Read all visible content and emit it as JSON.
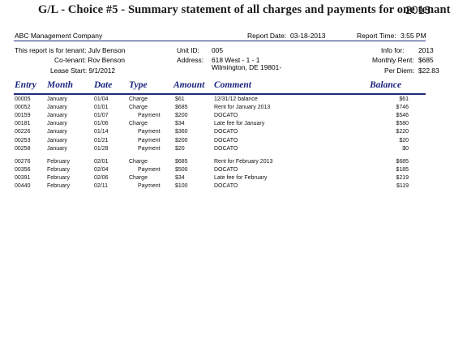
{
  "report": {
    "title": "G/L - Choice #5 - Summary statement of all charges and payments for one tenant",
    "year": "2013",
    "company": "ABC Management Company",
    "report_date_label": "Report Date:",
    "report_date": "03-18-2013",
    "report_time_label": "Report Time:",
    "report_time": "3:55 PM"
  },
  "tenant": {
    "line": "This report is for tenant: Julv Benson",
    "cotenant": "Co-tenant: Rov Benson",
    "lease_start": "Lease Start: 9/1/2012",
    "unit_label": "Unit ID:",
    "unit": "005",
    "address_label": "Address:",
    "address1": "618 West - 1 - 1",
    "address2": "Wilmington, DE 19801-",
    "info_label": "Info for:",
    "info_year": "2013",
    "rent_label": "Monthly Rent:",
    "rent": "$685",
    "per_diem_label": "Per Diem:",
    "per_diem": "$22.83"
  },
  "columns": {
    "entry": "Entry",
    "month": "Month",
    "date": "Date",
    "type": "Type",
    "amount": "Amount",
    "comment": "Comment",
    "balance": "Balance"
  },
  "groups": [
    [
      {
        "entry": "00005",
        "month": "January",
        "date": "01/04",
        "type": "Charge",
        "amount": "$61",
        "comment": "12/31/12 balance",
        "balance": "$61"
      },
      {
        "entry": "00052",
        "month": "January",
        "date": "01/01",
        "type": "Charge",
        "amount": "$685",
        "comment": "Rent for January 2013",
        "balance": "$746"
      },
      {
        "entry": "00159",
        "month": "January",
        "date": "01/07",
        "type": "Payment",
        "amount": "$200",
        "comment": "DOCATO",
        "balance": "$546"
      },
      {
        "entry": "00181",
        "month": "January",
        "date": "01/06",
        "type": "Charge",
        "amount": "$34",
        "comment": "Late fee for January",
        "balance": "$580"
      },
      {
        "entry": "00226",
        "month": "January",
        "date": "01/14",
        "type": "Payment",
        "amount": "$360",
        "comment": "DOCATO",
        "balance": "$220"
      },
      {
        "entry": "00253",
        "month": "January",
        "date": "01/21",
        "type": "Payment",
        "amount": "$200",
        "comment": "DOCATO",
        "balance": "$20"
      },
      {
        "entry": "00258",
        "month": "January",
        "date": "01/28",
        "type": "Payment",
        "amount": "$20",
        "comment": "DOCATO",
        "balance": "$0"
      }
    ],
    [
      {
        "entry": "00276",
        "month": "February",
        "date": "02/01",
        "type": "Charge",
        "amount": "$685",
        "comment": "Rent for February 2013",
        "balance": "$685"
      },
      {
        "entry": "00356",
        "month": "February",
        "date": "02/04",
        "type": "Payment",
        "amount": "$500",
        "comment": "DOCATO",
        "balance": "$185"
      },
      {
        "entry": "00391",
        "month": "February",
        "date": "02/06",
        "type": "Charge",
        "amount": "$34",
        "comment": "Late fee for February",
        "balance": "$219"
      },
      {
        "entry": "00440",
        "month": "February",
        "date": "02/11",
        "type": "Payment",
        "amount": "$100",
        "comment": "DOCATO",
        "balance": "$119"
      }
    ]
  ]
}
